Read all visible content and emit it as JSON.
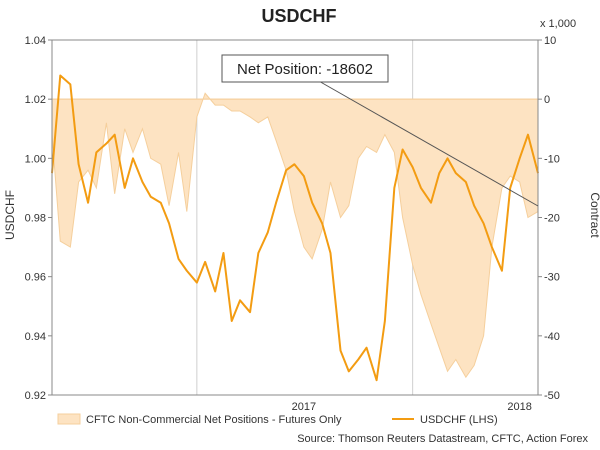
{
  "chart_data": {
    "type": "line",
    "title": "USDCHF",
    "left_axis": {
      "label": "USDCHF",
      "ylim": [
        0.92,
        1.04
      ],
      "ticks": [
        "1.04",
        "1.02",
        "1.00",
        "0.98",
        "0.96",
        "0.94",
        "0.92"
      ]
    },
    "right_axis": {
      "label": "Contract",
      "multiplier": "x 1,000",
      "ylim": [
        -50,
        10
      ],
      "ticks": [
        "10",
        "0",
        "-10",
        "-20",
        "-30",
        "-40",
        "-50"
      ]
    },
    "x_axis": {
      "ticks": [
        "2017",
        "2018"
      ]
    },
    "grid": "vertical year lines",
    "annotation": "Net Position: -18602",
    "legend": [
      "CFTC Non-Commercial Net Positions - Futures Only",
      "USDCHF (LHS)"
    ],
    "legend_position": "bottom",
    "source": "Source: Thomson Reuters Datastream, CFTC, Action Forex",
    "colors": {
      "area": "#fde3c2",
      "area_edge": "#f5cf9c",
      "line": "#f39c12"
    },
    "x_time_range": [
      "2016-05",
      "2018-08"
    ],
    "series": [
      {
        "name": "CFTC Non-Commercial Net Positions - Futures Only",
        "axis": "right",
        "x": [
          "2016-05-01",
          "2016-05-15",
          "2016-06-01",
          "2016-06-15",
          "2016-07-01",
          "2016-07-15",
          "2016-08-01",
          "2016-08-15",
          "2016-09-01",
          "2016-09-15",
          "2016-10-01",
          "2016-10-15",
          "2016-11-01",
          "2016-11-15",
          "2016-12-01",
          "2016-12-15",
          "2017-01-01",
          "2017-01-15",
          "2017-02-01",
          "2017-02-15",
          "2017-03-01",
          "2017-03-15",
          "2017-04-01",
          "2017-04-15",
          "2017-05-01",
          "2017-05-15",
          "2017-06-01",
          "2017-06-15",
          "2017-07-01",
          "2017-07-15",
          "2017-08-01",
          "2017-08-15",
          "2017-09-01",
          "2017-09-15",
          "2017-10-01",
          "2017-10-15",
          "2017-11-01",
          "2017-11-15",
          "2017-12-01",
          "2017-12-15",
          "2018-01-01",
          "2018-01-15",
          "2018-02-01",
          "2018-02-15",
          "2018-03-01",
          "2018-03-15",
          "2018-04-01",
          "2018-04-15",
          "2018-05-01",
          "2018-05-15",
          "2018-06-01",
          "2018-06-15",
          "2018-07-01",
          "2018-07-15",
          "2018-08-01"
        ],
        "values": [
          -6,
          -24,
          -25,
          -14,
          -12,
          -15,
          -4,
          -16,
          -5,
          -9,
          -5,
          -10,
          -11,
          -18,
          -9,
          -19,
          -3,
          1,
          -1,
          -1,
          -2,
          -2,
          -3,
          -4,
          -3,
          -7,
          -12,
          -19,
          -25,
          -27,
          -22,
          -14,
          -20,
          -18,
          -10,
          -8,
          -9,
          -6,
          -9,
          -20,
          -28,
          -33,
          -38,
          -42,
          -46,
          -44,
          -47,
          -45,
          -40,
          -25,
          -15,
          -13,
          -14,
          -20,
          -19
        ]
      },
      {
        "name": "USDCHF (LHS)",
        "axis": "left",
        "x": [
          "2016-05-01",
          "2016-05-15",
          "2016-06-01",
          "2016-06-15",
          "2016-07-01",
          "2016-07-15",
          "2016-08-01",
          "2016-08-15",
          "2016-09-01",
          "2016-09-15",
          "2016-10-01",
          "2016-10-15",
          "2016-11-01",
          "2016-11-15",
          "2016-12-01",
          "2016-12-15",
          "2017-01-01",
          "2017-01-15",
          "2017-02-01",
          "2017-02-15",
          "2017-03-01",
          "2017-03-15",
          "2017-04-01",
          "2017-04-15",
          "2017-05-01",
          "2017-05-15",
          "2017-06-01",
          "2017-06-15",
          "2017-07-01",
          "2017-07-15",
          "2017-08-01",
          "2017-08-15",
          "2017-09-01",
          "2017-09-15",
          "2017-10-01",
          "2017-10-15",
          "2017-11-01",
          "2017-11-15",
          "2017-12-01",
          "2017-12-15",
          "2018-01-01",
          "2018-01-15",
          "2018-02-01",
          "2018-02-15",
          "2018-03-01",
          "2018-03-15",
          "2018-04-01",
          "2018-04-15",
          "2018-05-01",
          "2018-05-15",
          "2018-06-01",
          "2018-06-15",
          "2018-07-01",
          "2018-07-15",
          "2018-08-01"
        ],
        "values": [
          0.995,
          1.028,
          1.025,
          0.998,
          0.985,
          1.002,
          1.005,
          1.008,
          0.99,
          1.0,
          0.992,
          0.987,
          0.985,
          0.978,
          0.966,
          0.962,
          0.958,
          0.965,
          0.955,
          0.968,
          0.945,
          0.952,
          0.948,
          0.968,
          0.975,
          0.985,
          0.996,
          0.998,
          0.994,
          0.985,
          0.978,
          0.968,
          0.935,
          0.928,
          0.932,
          0.936,
          0.925,
          0.945,
          0.99,
          1.003,
          0.997,
          0.99,
          0.985,
          0.995,
          1.0,
          0.995,
          0.992,
          0.984,
          0.978,
          0.97,
          0.962,
          0.99,
          1.0,
          1.008,
          0.995
        ]
      }
    ]
  }
}
